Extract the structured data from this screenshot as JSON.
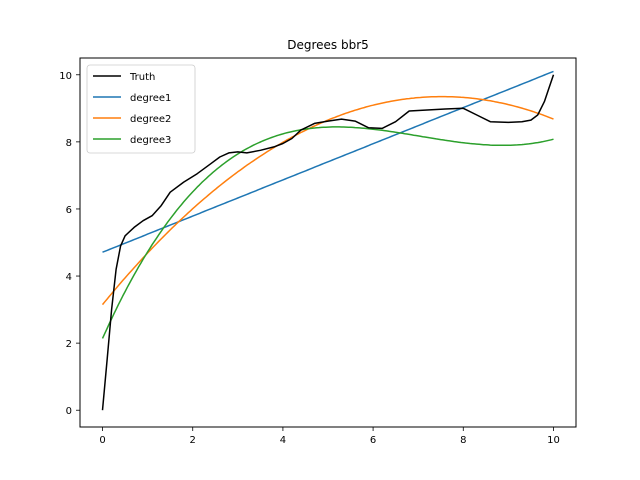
{
  "chart_data": {
    "type": "line",
    "title": "Degrees bbr5",
    "xlabel": "",
    "ylabel": "",
    "xlim": [
      -0.5,
      10.5
    ],
    "ylim": [
      -0.5,
      10.5
    ],
    "xticks": [
      0,
      2,
      4,
      6,
      8,
      10
    ],
    "yticks": [
      0,
      2,
      4,
      6,
      8,
      10
    ],
    "grid": false,
    "legend_position": "upper left",
    "series": [
      {
        "name": "Truth",
        "color": "#000000",
        "points": [
          [
            0.0,
            0.0
          ],
          [
            0.1,
            1.5
          ],
          [
            0.2,
            3.0
          ],
          [
            0.3,
            4.2
          ],
          [
            0.4,
            4.9
          ],
          [
            0.5,
            5.2
          ],
          [
            0.7,
            5.45
          ],
          [
            0.9,
            5.65
          ],
          [
            1.1,
            5.8
          ],
          [
            1.3,
            6.1
          ],
          [
            1.5,
            6.5
          ],
          [
            1.8,
            6.8
          ],
          [
            2.1,
            7.05
          ],
          [
            2.4,
            7.35
          ],
          [
            2.6,
            7.55
          ],
          [
            2.8,
            7.67
          ],
          [
            3.0,
            7.7
          ],
          [
            3.2,
            7.67
          ],
          [
            3.5,
            7.75
          ],
          [
            3.8,
            7.85
          ],
          [
            4.0,
            7.95
          ],
          [
            4.2,
            8.1
          ],
          [
            4.4,
            8.35
          ],
          [
            4.7,
            8.55
          ],
          [
            5.0,
            8.62
          ],
          [
            5.3,
            8.68
          ],
          [
            5.6,
            8.62
          ],
          [
            5.9,
            8.42
          ],
          [
            6.2,
            8.4
          ],
          [
            6.5,
            8.6
          ],
          [
            6.8,
            8.92
          ],
          [
            7.2,
            8.95
          ],
          [
            7.6,
            8.98
          ],
          [
            8.0,
            9.0
          ],
          [
            8.3,
            8.8
          ],
          [
            8.6,
            8.6
          ],
          [
            9.0,
            8.58
          ],
          [
            9.3,
            8.6
          ],
          [
            9.5,
            8.65
          ],
          [
            9.65,
            8.8
          ],
          [
            9.8,
            9.2
          ],
          [
            9.9,
            9.6
          ],
          [
            10.0,
            10.0
          ]
        ]
      },
      {
        "name": "degree1",
        "color": "#1f77b4",
        "coefficients": [
          4.71,
          0.539
        ]
      },
      {
        "name": "degree2",
        "color": "#ff7f0e",
        "coefficients": [
          3.15,
          1.647,
          -0.1094
        ]
      },
      {
        "name": "degree3",
        "color": "#2ca02c",
        "coefficients": [
          2.14,
          3.02,
          -0.4613,
          0.02187
        ]
      }
    ]
  }
}
